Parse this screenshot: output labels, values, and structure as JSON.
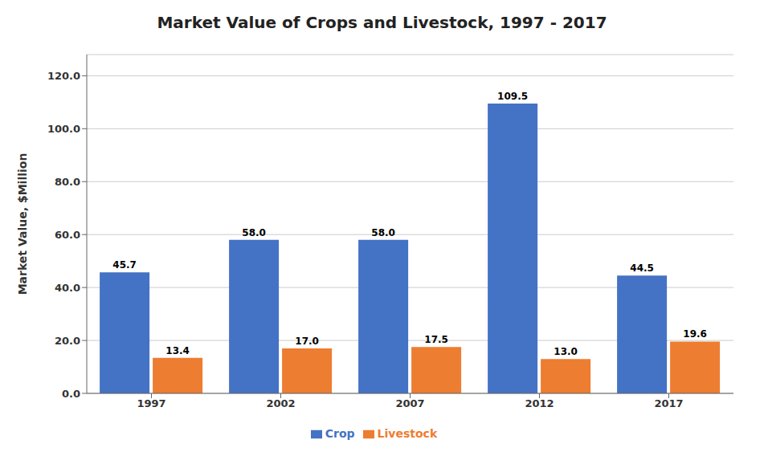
{
  "chart_data": {
    "type": "bar",
    "title": "Market Value of Crops and Livestock, 1997 - 2017",
    "ylabel": "Market Value, $Million",
    "categories": [
      "1997",
      "2002",
      "2007",
      "2012",
      "2017"
    ],
    "series": [
      {
        "name": "Crop",
        "color": "#4472C4",
        "values": [
          45.7,
          58.0,
          58.0,
          109.5,
          44.5
        ],
        "value_labels": [
          "45.7",
          "58.0",
          "58.0",
          "109.5",
          "44.5"
        ]
      },
      {
        "name": "Livestock",
        "color": "#ED7D31",
        "values": [
          13.4,
          17.0,
          17.5,
          13.0,
          19.6
        ],
        "value_labels": [
          "13.4",
          "17.0",
          "17.5",
          "13.0",
          "19.6"
        ]
      }
    ],
    "ylim": [
      0,
      128
    ],
    "yticks": [
      {
        "value": 0.0,
        "label": "0.0"
      },
      {
        "value": 20.0,
        "label": "20.0"
      },
      {
        "value": 40.0,
        "label": "40.0"
      },
      {
        "value": 60.0,
        "label": "60.0"
      },
      {
        "value": 80.0,
        "label": "80.0"
      },
      {
        "value": 100.0,
        "label": "100.0"
      },
      {
        "value": 120.0,
        "label": "120.0"
      }
    ],
    "grid": true,
    "legend": "bottom",
    "data_labels": true
  }
}
